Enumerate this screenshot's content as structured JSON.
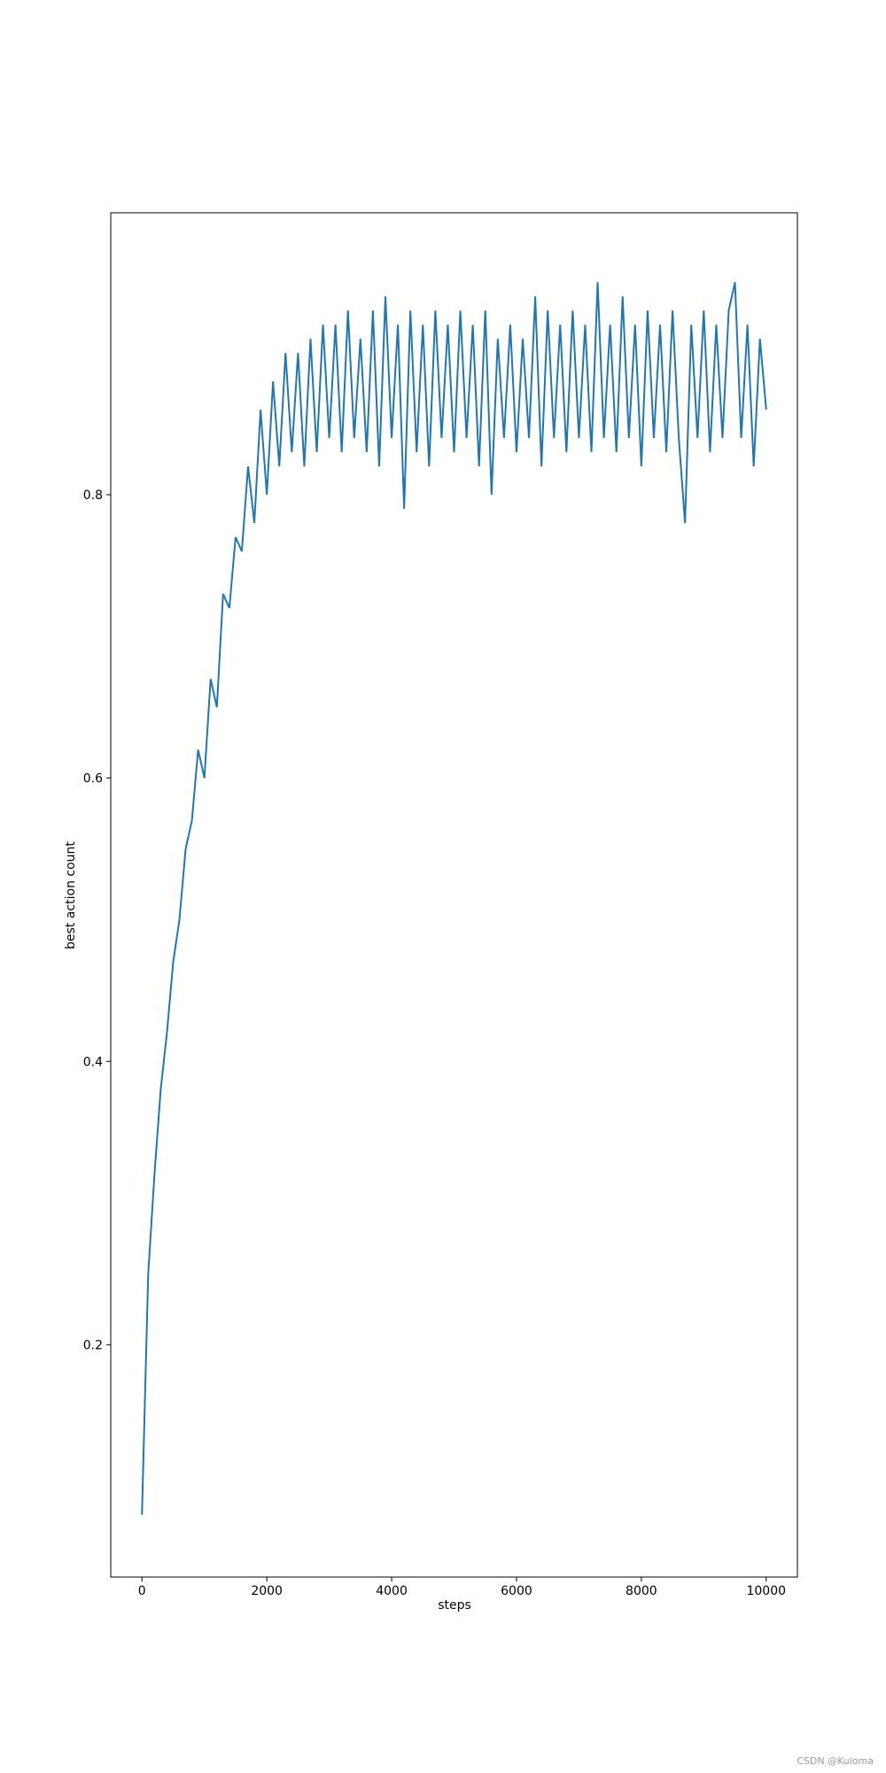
{
  "chart_data": {
    "type": "line",
    "xlabel": "steps",
    "ylabel": "best action count",
    "watermark": "CSDN @Kuioma",
    "x": [
      0,
      100,
      200,
      300,
      400,
      500,
      600,
      700,
      800,
      900,
      1000,
      1100,
      1200,
      1300,
      1400,
      1500,
      1600,
      1700,
      1800,
      1900,
      2000,
      2100,
      2200,
      2300,
      2400,
      2500,
      2600,
      2700,
      2800,
      2900,
      3000,
      3100,
      3200,
      3300,
      3400,
      3500,
      3600,
      3700,
      3800,
      3900,
      4000,
      4100,
      4200,
      4300,
      4400,
      4500,
      4600,
      4700,
      4800,
      4900,
      5000,
      5100,
      5200,
      5300,
      5400,
      5500,
      5600,
      5700,
      5800,
      5900,
      6000,
      6100,
      6200,
      6300,
      6400,
      6500,
      6600,
      6700,
      6800,
      6900,
      7000,
      7100,
      7200,
      7300,
      7400,
      7500,
      7600,
      7700,
      7800,
      7900,
      8000,
      8100,
      8200,
      8300,
      8400,
      8500,
      8600,
      8700,
      8800,
      8900,
      9000,
      9100,
      9200,
      9300,
      9400,
      9500,
      9600,
      9700,
      9800,
      9900,
      10000
    ],
    "series": [
      {
        "name": "best action count",
        "color": "#1f77b4",
        "values": [
          0.08,
          0.25,
          0.32,
          0.38,
          0.42,
          0.47,
          0.5,
          0.55,
          0.57,
          0.62,
          0.6,
          0.67,
          0.65,
          0.73,
          0.72,
          0.77,
          0.76,
          0.82,
          0.78,
          0.86,
          0.8,
          0.88,
          0.82,
          0.9,
          0.83,
          0.9,
          0.82,
          0.91,
          0.83,
          0.92,
          0.84,
          0.92,
          0.83,
          0.93,
          0.84,
          0.91,
          0.83,
          0.93,
          0.82,
          0.94,
          0.84,
          0.92,
          0.79,
          0.93,
          0.83,
          0.92,
          0.82,
          0.93,
          0.84,
          0.92,
          0.83,
          0.93,
          0.84,
          0.92,
          0.82,
          0.93,
          0.8,
          0.91,
          0.84,
          0.92,
          0.83,
          0.91,
          0.84,
          0.94,
          0.82,
          0.93,
          0.84,
          0.92,
          0.83,
          0.93,
          0.84,
          0.92,
          0.83,
          0.95,
          0.84,
          0.92,
          0.83,
          0.94,
          0.84,
          0.92,
          0.82,
          0.93,
          0.84,
          0.92,
          0.83,
          0.93,
          0.84,
          0.78,
          0.92,
          0.84,
          0.93,
          0.83,
          0.92,
          0.84,
          0.93,
          0.95,
          0.84,
          0.92,
          0.82,
          0.91,
          0.86
        ]
      }
    ],
    "xlim": [
      -500,
      10500
    ],
    "xticks": [
      0,
      2000,
      4000,
      6000,
      8000,
      10000
    ],
    "ylim": [
      0.036,
      0.999
    ],
    "yticks": [
      0.2,
      0.4,
      0.6,
      0.8
    ]
  }
}
